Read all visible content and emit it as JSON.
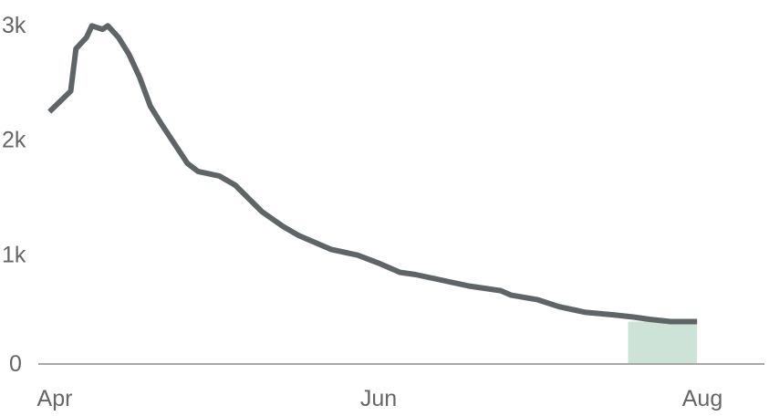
{
  "chart_data": {
    "type": "line",
    "title": "",
    "xlabel": "",
    "ylabel": "",
    "x_ticks": [
      {
        "label": "Apr",
        "date": "2020-04-01"
      },
      {
        "label": "Jun",
        "date": "2020-06-01"
      },
      {
        "label": "Aug",
        "date": "2020-08-01"
      }
    ],
    "y_ticks": [
      {
        "label": "0",
        "value": 0
      },
      {
        "label": "1k",
        "value": 1000
      },
      {
        "label": "2k",
        "value": 2000
      },
      {
        "label": "3k",
        "value": 3000
      }
    ],
    "ylim": [
      0,
      3000
    ],
    "xlim": [
      "2020-04-01",
      "2020-08-01"
    ],
    "grid": false,
    "colors": {
      "line": "#5f6566",
      "highlight": "#cde3d8",
      "axis": "#a8a8a8",
      "tick_text": "#666666"
    },
    "highlight_range": {
      "start": "2020-07-18",
      "end": "2020-07-31"
    },
    "series": [
      {
        "x": [
          "2020-03-31",
          "2020-04-04",
          "2020-04-05",
          "2020-04-07",
          "2020-04-08",
          "2020-04-10",
          "2020-04-11",
          "2020-04-13",
          "2020-04-15",
          "2020-04-17",
          "2020-04-19",
          "2020-04-21",
          "2020-04-26",
          "2020-04-28",
          "2020-05-02",
          "2020-05-05",
          "2020-05-10",
          "2020-05-14",
          "2020-05-17",
          "2020-05-23",
          "2020-05-28",
          "2020-06-01",
          "2020-06-05",
          "2020-06-08",
          "2020-06-14",
          "2020-06-18",
          "2020-06-24",
          "2020-06-26",
          "2020-07-01",
          "2020-07-05",
          "2020-07-10",
          "2020-07-15",
          "2020-07-19",
          "2020-07-22",
          "2020-07-26",
          "2020-07-31"
        ],
        "y": [
          2200,
          2380,
          2750,
          2850,
          2950,
          2920,
          2950,
          2850,
          2700,
          2500,
          2250,
          2100,
          1750,
          1680,
          1640,
          1560,
          1330,
          1200,
          1120,
          1000,
          950,
          880,
          800,
          780,
          720,
          680,
          640,
          600,
          560,
          500,
          450,
          430,
          410,
          390,
          370,
          370
        ]
      }
    ]
  }
}
